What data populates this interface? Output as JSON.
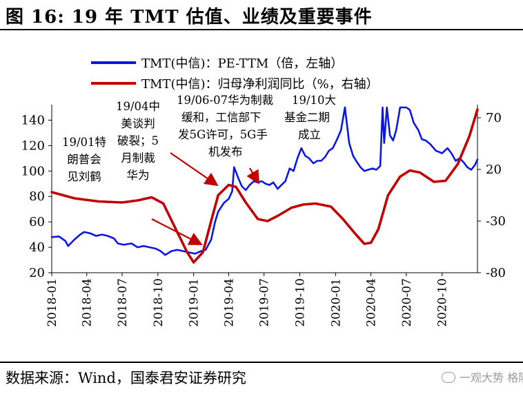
{
  "figure_title": "图 16: 19 年 TMT 估值、业绩及重要事件",
  "source_note": "数据来源：Wind，国泰君安证券研究",
  "watermark": "一观大势 格隆汇",
  "chart_data": {
    "type": "line",
    "legend_position": "top",
    "grid": false,
    "x_ticks": [
      "2018-01",
      "2018-04",
      "2018-07",
      "2018-10",
      "2019-01",
      "2019-04",
      "2019-07",
      "2019-10",
      "2020-01",
      "2020-04",
      "2020-07",
      "2020-10"
    ],
    "x_range": [
      "2018-01-01",
      "2020-12-31"
    ],
    "left_axis": {
      "ticks": [
        20,
        40,
        60,
        80,
        100,
        120,
        140
      ],
      "ylim": [
        20,
        150
      ]
    },
    "right_axis": {
      "ticks": [
        -80,
        -30,
        20,
        70
      ],
      "ylim": [
        -80,
        80
      ]
    },
    "series": [
      {
        "name": "TMT(中信)：PE-TTM（倍，左轴）",
        "axis": "left",
        "color": "#0b16e3",
        "points": [
          [
            "2018-01-01",
            48
          ],
          [
            "2018-01-20",
            48.5
          ],
          [
            "2018-02-05",
            45
          ],
          [
            "2018-02-12",
            41
          ],
          [
            "2018-02-28",
            46
          ],
          [
            "2018-03-15",
            50
          ],
          [
            "2018-03-25",
            52
          ],
          [
            "2018-04-10",
            51
          ],
          [
            "2018-04-25",
            49
          ],
          [
            "2018-05-10",
            50
          ],
          [
            "2018-05-25",
            49
          ],
          [
            "2018-06-10",
            47
          ],
          [
            "2018-06-20",
            43
          ],
          [
            "2018-07-05",
            42
          ],
          [
            "2018-07-25",
            43
          ],
          [
            "2018-08-10",
            40
          ],
          [
            "2018-08-25",
            41
          ],
          [
            "2018-09-10",
            40
          ],
          [
            "2018-09-25",
            39
          ],
          [
            "2018-10-08",
            37
          ],
          [
            "2018-10-20",
            34
          ],
          [
            "2018-11-05",
            37
          ],
          [
            "2018-11-20",
            38
          ],
          [
            "2018-12-05",
            37
          ],
          [
            "2018-12-20",
            36
          ],
          [
            "2019-01-05",
            35
          ],
          [
            "2019-01-20",
            37
          ],
          [
            "2019-02-01",
            38
          ],
          [
            "2019-02-15",
            46
          ],
          [
            "2019-02-25",
            60
          ],
          [
            "2019-03-05",
            68
          ],
          [
            "2019-03-20",
            75
          ],
          [
            "2019-04-01",
            78
          ],
          [
            "2019-04-10",
            84
          ],
          [
            "2019-04-15",
            103
          ],
          [
            "2019-04-25",
            95
          ],
          [
            "2019-05-05",
            88
          ],
          [
            "2019-05-15",
            85
          ],
          [
            "2019-05-25",
            89
          ],
          [
            "2019-06-05",
            92
          ],
          [
            "2019-06-15",
            91
          ],
          [
            "2019-06-25",
            92
          ],
          [
            "2019-07-05",
            90
          ],
          [
            "2019-07-15",
            89
          ],
          [
            "2019-07-25",
            91
          ],
          [
            "2019-08-05",
            86
          ],
          [
            "2019-08-15",
            89
          ],
          [
            "2019-08-25",
            92
          ],
          [
            "2019-09-05",
            102
          ],
          [
            "2019-09-15",
            100
          ],
          [
            "2019-09-25",
            110
          ],
          [
            "2019-10-05",
            118
          ],
          [
            "2019-10-15",
            112
          ],
          [
            "2019-10-25",
            110
          ],
          [
            "2019-11-05",
            106
          ],
          [
            "2019-11-15",
            108
          ],
          [
            "2019-11-25",
            108
          ],
          [
            "2019-12-05",
            111
          ],
          [
            "2019-12-15",
            116
          ],
          [
            "2019-12-25",
            118
          ],
          [
            "2020-01-05",
            125
          ],
          [
            "2020-01-15",
            132
          ],
          [
            "2020-01-25",
            150
          ],
          [
            "2020-02-05",
            122
          ],
          [
            "2020-02-15",
            112
          ],
          [
            "2020-02-25",
            107
          ],
          [
            "2020-03-05",
            103
          ],
          [
            "2020-03-15",
            100
          ],
          [
            "2020-03-25",
            101
          ],
          [
            "2020-04-05",
            102
          ],
          [
            "2020-04-15",
            101
          ],
          [
            "2020-04-25",
            104
          ],
          [
            "2020-05-01",
            150
          ],
          [
            "2020-05-05",
            122
          ],
          [
            "2020-05-12",
            150
          ],
          [
            "2020-05-20",
            128
          ],
          [
            "2020-05-28",
            124
          ],
          [
            "2020-06-05",
            132
          ],
          [
            "2020-06-15",
            150
          ],
          [
            "2020-07-01",
            150
          ],
          [
            "2020-07-10",
            148
          ],
          [
            "2020-07-20",
            138
          ],
          [
            "2020-08-01",
            132
          ],
          [
            "2020-08-10",
            125
          ],
          [
            "2020-08-20",
            124
          ],
          [
            "2020-09-01",
            121
          ],
          [
            "2020-09-15",
            116
          ],
          [
            "2020-10-01",
            114
          ],
          [
            "2020-10-15",
            118
          ],
          [
            "2020-10-25",
            114
          ],
          [
            "2020-11-05",
            108
          ],
          [
            "2020-11-15",
            110
          ],
          [
            "2020-11-25",
            107
          ],
          [
            "2020-12-05",
            103
          ],
          [
            "2020-12-15",
            101
          ],
          [
            "2020-12-25",
            105
          ],
          [
            "2020-12-31",
            109
          ]
        ]
      },
      {
        "name": "TMT(中信)：归母净利润同比（%，右轴）",
        "axis": "right",
        "color": "#c00000",
        "points": [
          [
            "2018-01-01",
            -2
          ],
          [
            "2018-03-01",
            -8
          ],
          [
            "2018-05-01",
            -11
          ],
          [
            "2018-07-01",
            -12
          ],
          [
            "2018-08-10",
            -10
          ],
          [
            "2018-09-15",
            -7
          ],
          [
            "2018-10-15",
            -13
          ],
          [
            "2018-11-15",
            -37
          ],
          [
            "2018-12-15",
            -60
          ],
          [
            "2019-01-01",
            -70
          ],
          [
            "2019-01-25",
            -60
          ],
          [
            "2019-02-15",
            -30
          ],
          [
            "2019-03-05",
            -5
          ],
          [
            "2019-04-01",
            5
          ],
          [
            "2019-04-20",
            3
          ],
          [
            "2019-05-15",
            -12
          ],
          [
            "2019-06-15",
            -28
          ],
          [
            "2019-07-10",
            -30
          ],
          [
            "2019-08-05",
            -25
          ],
          [
            "2019-09-10",
            -17
          ],
          [
            "2019-10-10",
            -14
          ],
          [
            "2019-11-10",
            -13
          ],
          [
            "2019-12-20",
            -16
          ],
          [
            "2020-01-20",
            -28
          ],
          [
            "2020-02-20",
            -42
          ],
          [
            "2020-03-15",
            -52
          ],
          [
            "2020-04-01",
            -51
          ],
          [
            "2020-04-20",
            -38
          ],
          [
            "2020-05-15",
            -5
          ],
          [
            "2020-06-15",
            13
          ],
          [
            "2020-07-10",
            19
          ],
          [
            "2020-08-05",
            17
          ],
          [
            "2020-09-10",
            8
          ],
          [
            "2020-10-10",
            9
          ],
          [
            "2020-11-10",
            25
          ],
          [
            "2020-12-10",
            52
          ],
          [
            "2020-12-31",
            78
          ]
        ]
      }
    ],
    "annotations": [
      {
        "lines": [
          "19/01特",
          "朗普会",
          "见刘鹤"
        ]
      },
      {
        "lines": [
          "19/04中",
          "美谈判",
          "破裂；5",
          "月制裁",
          "华为"
        ]
      },
      {
        "lines": [
          "19/06-07华为制裁",
          "缓和，工信部下",
          "发5G许可，5G手",
          "机发布"
        ]
      },
      {
        "lines": [
          "19/10大",
          "基金二期",
          "成立"
        ]
      }
    ]
  }
}
